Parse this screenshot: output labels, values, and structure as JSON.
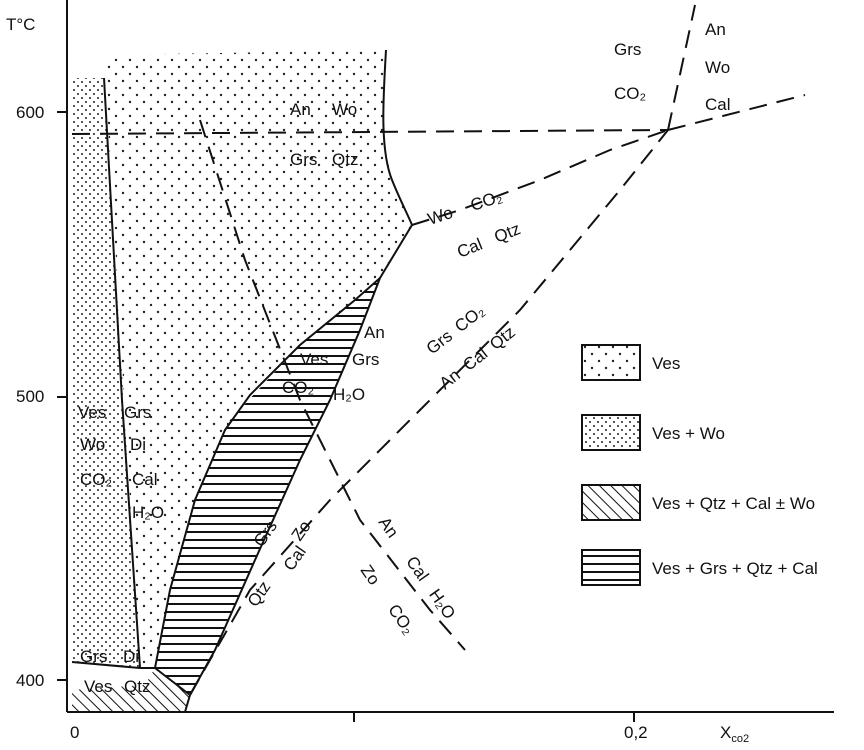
{
  "axes": {
    "y_title": "T°C",
    "y_ticks": [
      "600",
      "500",
      "400"
    ],
    "x_ticks": [
      "0",
      "0,2"
    ],
    "x_title": "X",
    "x_title_sub": "co2"
  },
  "field_labels": {
    "an_wo_top_1": "An",
    "an_wo_top_2": "Wo",
    "grs_qtz_top_1": "Grs",
    "grs_qtz_top_2": "Qtz",
    "grs_co2_1": "Grs",
    "grs_co2_2": "CO₂",
    "an_wo_cal_1": "An",
    "an_wo_cal_2": "Wo",
    "an_wo_cal_3": "Cal",
    "wo_co2_1": "Wo",
    "wo_co2_2": "CO₂",
    "cal_qtz_1": "Cal",
    "cal_qtz_2": "Qtz",
    "grs_co2_diag_1": "Grs",
    "grs_co2_diag_2": "CO₂",
    "an_cal_qtz_1": "An",
    "an_cal_qtz_2": "Cal",
    "an_cal_qtz_3": "Qtz",
    "an_grs_1": "An",
    "an_grs_2": "Grs",
    "ves_co2_1": "Ves",
    "ves_co2_2": "CO₂",
    "h2o_mid": "H₂O",
    "left_ves": "Ves",
    "left_grs": "Grs",
    "left_wo": "Wo",
    "left_di": "Di",
    "left_co2": "CO₂",
    "left_cal": "Cal",
    "left_h2o": "H₂O",
    "grs_cal_zo_1": "Grs",
    "grs_cal_zo_2": "Cal",
    "grs_cal_zo_3": "Zo",
    "qtz": "Qtz",
    "an_cal_h2o_1": "An",
    "an_cal_h2o_2": "Cal",
    "an_cal_h2o_3": "H₂O",
    "zo_co2_1": "Zo",
    "zo_co2_2": "CO₂",
    "bottom_grs": "Grs",
    "bottom_di": "Di",
    "bottom_ves": "Ves",
    "bottom_qtz": "Qtz"
  },
  "legend": [
    {
      "pattern": "sparse-dots",
      "label": "Ves"
    },
    {
      "pattern": "dense-dots",
      "label": "Ves + Wo"
    },
    {
      "pattern": "diagonal-hatch",
      "label": "Ves + Qtz + Cal ±  Wo"
    },
    {
      "pattern": "horizontal-hatch",
      "label": "Ves + Grs + Qtz + Cal"
    }
  ]
}
